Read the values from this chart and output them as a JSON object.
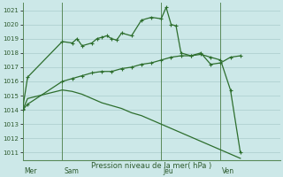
{
  "background_color": "#cce8e8",
  "grid_color": "#aacccc",
  "line_color": "#2d6e2d",
  "ylabel": "Pression niveau de la mer( hPa )",
  "ylim": [
    1010.5,
    1021.5
  ],
  "yticks": [
    1011,
    1012,
    1013,
    1014,
    1015,
    1016,
    1017,
    1018,
    1019,
    1020,
    1021
  ],
  "day_labels": [
    "Mer",
    "Sam",
    "Jeu",
    "Ven"
  ],
  "day_positions": [
    0,
    4,
    14,
    20
  ],
  "xlim": [
    0,
    26
  ],
  "line1_x": [
    0,
    0.5,
    4,
    5,
    5.5,
    6,
    7,
    7.5,
    8,
    8.5,
    9,
    9.5,
    10,
    11,
    12,
    13,
    14,
    14.5,
    15,
    15.5,
    16,
    17,
    18,
    19,
    20,
    21,
    22
  ],
  "line1_y": [
    1014.1,
    1016.3,
    1018.8,
    1018.7,
    1019.0,
    1018.5,
    1018.7,
    1019.0,
    1019.1,
    1019.2,
    1019.0,
    1018.9,
    1019.4,
    1019.2,
    1020.3,
    1020.5,
    1020.4,
    1021.2,
    1020.0,
    1019.9,
    1018.0,
    1017.8,
    1018.0,
    1017.2,
    1017.3,
    1017.7,
    1017.8
  ],
  "line2_x": [
    0,
    0.5,
    4,
    5,
    6,
    7,
    8,
    9,
    10,
    11,
    12,
    13,
    14,
    15,
    16,
    17,
    18,
    19,
    20,
    21,
    22
  ],
  "line2_y": [
    1014.0,
    1014.4,
    1016.0,
    1016.2,
    1016.4,
    1016.6,
    1016.7,
    1016.7,
    1016.9,
    1017.0,
    1017.2,
    1017.3,
    1017.5,
    1017.7,
    1017.8,
    1017.8,
    1017.9,
    1017.7,
    1017.5,
    1015.4,
    1011.0
  ],
  "line3_x": [
    0,
    0.5,
    4,
    5,
    6,
    7,
    8,
    9,
    10,
    11,
    12,
    13,
    14,
    15,
    16,
    17,
    18,
    19,
    20,
    21,
    22
  ],
  "line3_y": [
    1014.0,
    1014.8,
    1015.4,
    1015.3,
    1015.1,
    1014.8,
    1014.5,
    1014.3,
    1014.1,
    1013.8,
    1013.6,
    1013.3,
    1013.0,
    1012.7,
    1012.4,
    1012.1,
    1011.8,
    1011.5,
    1011.2,
    1010.9,
    1010.6
  ],
  "ven_line_x": 20,
  "jeu_line_x": 14,
  "mer_line_x": 0,
  "sam_line_x": 4
}
